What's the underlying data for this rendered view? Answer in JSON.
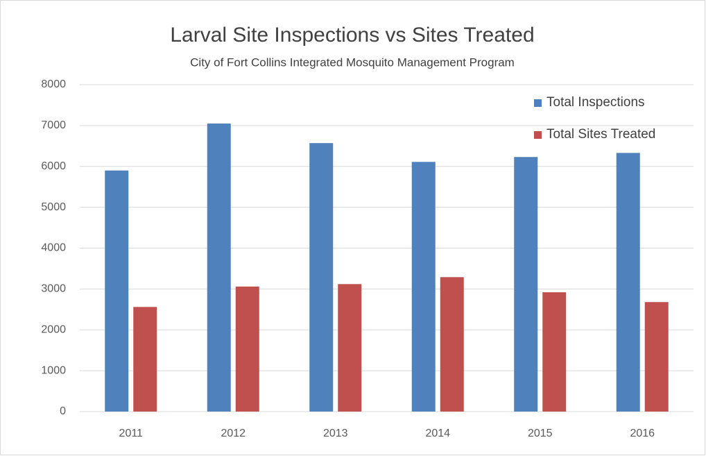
{
  "chart_data": {
    "type": "bar",
    "title": "Larval Site Inspections vs Sites Treated",
    "subtitle": "City of Fort Collins Integrated Mosquito Management Program",
    "categories": [
      "2011",
      "2012",
      "2013",
      "2014",
      "2015",
      "2016"
    ],
    "series": [
      {
        "name": "Total Inspections",
        "color": "#4f81bd",
        "values": [
          5900,
          7050,
          6570,
          6110,
          6230,
          6330
        ]
      },
      {
        "name": "Total Sites Treated",
        "color": "#c0504d",
        "values": [
          2560,
          3060,
          3120,
          3290,
          2920,
          2680
        ]
      }
    ],
    "ylim": [
      0,
      8000
    ],
    "yticks": [
      0,
      1000,
      2000,
      3000,
      4000,
      5000,
      6000,
      7000,
      8000
    ],
    "grid": true,
    "legend": "top-right"
  }
}
